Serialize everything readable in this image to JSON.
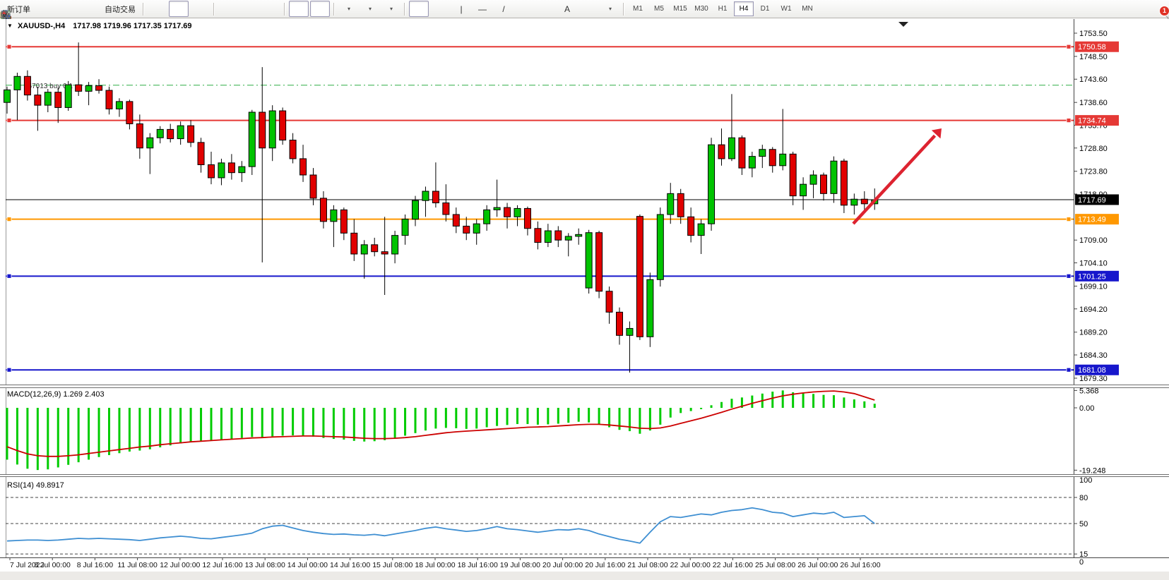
{
  "toolbar": {
    "groups": [
      {
        "name": "trade",
        "items": [
          {
            "name": "new-order-button",
            "kind": "text",
            "label": "新订单",
            "interact": true
          },
          {
            "name": "gold-bar-icon",
            "kind": "icon",
            "icon": "gold"
          },
          {
            "name": "market-watch-icon",
            "kind": "icon",
            "icon": "monitor"
          },
          {
            "name": "signals-icon",
            "kind": "icon",
            "icon": "signal"
          },
          {
            "name": "autotrade-button",
            "kind": "icontext",
            "icon": "autotrade",
            "label": "自动交易"
          }
        ]
      },
      {
        "name": "chart-type",
        "items": [
          {
            "name": "bar-chart-button",
            "kind": "icon",
            "icon": "bars"
          },
          {
            "name": "candlestick-chart-button",
            "kind": "icon",
            "icon": "candles",
            "active": true
          },
          {
            "name": "line-chart-button",
            "kind": "icon",
            "icon": "linechart"
          }
        ]
      },
      {
        "name": "zoom",
        "items": [
          {
            "name": "zoom-in-button",
            "kind": "icon",
            "icon": "zoomin"
          },
          {
            "name": "zoom-out-button",
            "kind": "icon",
            "icon": "zoomout"
          },
          {
            "name": "tile-windows-button",
            "kind": "icon",
            "icon": "tile"
          }
        ]
      },
      {
        "name": "scroll",
        "items": [
          {
            "name": "auto-scroll-button",
            "kind": "icon",
            "icon": "autoscroll",
            "active": true
          },
          {
            "name": "chart-shift-button",
            "kind": "icon",
            "icon": "chartshift",
            "active": true
          }
        ]
      },
      {
        "name": "insert",
        "items": [
          {
            "name": "indicators-button",
            "kind": "icon",
            "icon": "indicator",
            "caret": true
          },
          {
            "name": "periods-button",
            "kind": "icon",
            "icon": "clock",
            "caret": true
          },
          {
            "name": "templates-button",
            "kind": "icon",
            "icon": "template",
            "caret": true
          }
        ]
      },
      {
        "name": "draw",
        "items": [
          {
            "name": "cursor-button",
            "kind": "icon",
            "icon": "cursor",
            "active": true
          },
          {
            "name": "crosshair-button",
            "kind": "icon",
            "icon": "crosshair"
          },
          {
            "name": "vertical-line-button",
            "kind": "glyph",
            "glyph": "|"
          },
          {
            "name": "horizontal-line-button",
            "kind": "glyph",
            "glyph": "—"
          },
          {
            "name": "trendline-button",
            "kind": "glyph",
            "glyph": "/"
          },
          {
            "name": "channel-button",
            "kind": "icon",
            "icon": "channel"
          },
          {
            "name": "fibonacci-button",
            "kind": "icon",
            "icon": "fibo"
          },
          {
            "name": "text-button",
            "kind": "glyph",
            "glyph": "A"
          },
          {
            "name": "text-label-button",
            "kind": "icon",
            "icon": "textlabel"
          },
          {
            "name": "arrows-button",
            "kind": "icon",
            "icon": "shapes",
            "caret": true
          }
        ]
      }
    ],
    "timeframes": {
      "items": [
        "M1",
        "M5",
        "M15",
        "M30",
        "H1",
        "H4",
        "D1",
        "W1",
        "MN"
      ],
      "active": "H4"
    },
    "right": {
      "search_icon": "search",
      "chat_icon": "chat",
      "badge": "1"
    }
  },
  "header": {
    "collapse_glyph": "▼",
    "title": "XAUUSD-,H4",
    "ohlc": "1717.98 1719.96 1717.35 1717.69"
  },
  "chart_data": {
    "type": "candlestick",
    "symbol": "XAUUSD",
    "timeframe": "H4",
    "title": "XAUUSD-,H4",
    "current_ohlc": {
      "open": 1717.98,
      "high": 1719.96,
      "low": 1717.35,
      "close": 1717.69
    },
    "x_labels": [
      "7 Jul 2022",
      "8 Jul 00:00",
      "8 Jul 16:00",
      "11 Jul 08:00",
      "12 Jul 00:00",
      "12 Jul 16:00",
      "13 Jul 08:00",
      "14 Jul 00:00",
      "14 Jul 16:00",
      "15 Jul 08:00",
      "18 Jul 00:00",
      "18 Jul 16:00",
      "19 Jul 08:00",
      "20 Jul 00:00",
      "20 Jul 16:00",
      "21 Jul 08:00",
      "22 Jul 00:00",
      "22 Jul 16:00",
      "25 Jul 08:00",
      "26 Jul 00:00",
      "26 Jul 16:00"
    ],
    "price_ticks": [
      1753.5,
      1748.5,
      1743.6,
      1738.6,
      1733.7,
      1728.8,
      1723.8,
      1718.9,
      1709.0,
      1704.1,
      1699.1,
      1694.2,
      1689.2,
      1684.3,
      1679.3
    ],
    "candles": [
      [
        1738.6,
        1742.0,
        1736.2,
        1741.3
      ],
      [
        1741.3,
        1745.0,
        1734.8,
        1744.2
      ],
      [
        1744.2,
        1745.5,
        1739.0,
        1740.2
      ],
      [
        1740.2,
        1742.0,
        1732.5,
        1738.0
      ],
      [
        1738.0,
        1741.5,
        1736.5,
        1740.8
      ],
      [
        1740.8,
        1741.8,
        1734.2,
        1737.5
      ],
      [
        1737.5,
        1743.2,
        1736.8,
        1742.4
      ],
      [
        1742.4,
        1751.5,
        1740.0,
        1741.0
      ],
      [
        1741.0,
        1743.0,
        1738.0,
        1742.2
      ],
      [
        1742.2,
        1743.6,
        1740.5,
        1741.2
      ],
      [
        1741.2,
        1742.0,
        1736.0,
        1737.2
      ],
      [
        1737.2,
        1739.5,
        1735.5,
        1738.8
      ],
      [
        1738.8,
        1739.2,
        1732.8,
        1734.0
      ],
      [
        1734.0,
        1736.0,
        1726.5,
        1728.8
      ],
      [
        1728.8,
        1732.0,
        1723.2,
        1731.0
      ],
      [
        1731.0,
        1733.5,
        1729.8,
        1732.8
      ],
      [
        1732.8,
        1734.0,
        1730.0,
        1730.8
      ],
      [
        1730.8,
        1734.5,
        1729.5,
        1733.6
      ],
      [
        1733.6,
        1734.8,
        1729.0,
        1730.0
      ],
      [
        1730.0,
        1731.0,
        1723.5,
        1725.2
      ],
      [
        1725.2,
        1728.0,
        1721.0,
        1722.4
      ],
      [
        1722.4,
        1726.5,
        1720.8,
        1725.6
      ],
      [
        1725.6,
        1727.5,
        1722.0,
        1723.5
      ],
      [
        1723.5,
        1726.0,
        1721.5,
        1724.8
      ],
      [
        1724.8,
        1737.0,
        1723.0,
        1736.5
      ],
      [
        1736.5,
        1746.2,
        1704.2,
        1728.8
      ],
      [
        1728.8,
        1738.0,
        1726.0,
        1736.8
      ],
      [
        1736.8,
        1737.5,
        1729.5,
        1730.5
      ],
      [
        1730.5,
        1732.0,
        1725.5,
        1726.5
      ],
      [
        1726.5,
        1729.5,
        1721.5,
        1723.0
      ],
      [
        1723.0,
        1724.5,
        1716.5,
        1718.0
      ],
      [
        1718.0,
        1719.5,
        1711.5,
        1713.0
      ],
      [
        1713.0,
        1716.5,
        1707.5,
        1715.5
      ],
      [
        1715.5,
        1716.0,
        1709.0,
        1710.5
      ],
      [
        1710.5,
        1713.5,
        1704.5,
        1706.0
      ],
      [
        1706.0,
        1709.0,
        1700.7,
        1708.0
      ],
      [
        1708.0,
        1709.5,
        1705.5,
        1706.5
      ],
      [
        1706.5,
        1714.0,
        1697.2,
        1706.0
      ],
      [
        1706.0,
        1711.0,
        1704.0,
        1710.0
      ],
      [
        1710.0,
        1714.5,
        1708.0,
        1713.5
      ],
      [
        1713.5,
        1718.5,
        1712.0,
        1717.5
      ],
      [
        1717.5,
        1720.5,
        1714.0,
        1719.5
      ],
      [
        1719.5,
        1725.7,
        1716.0,
        1717.0
      ],
      [
        1717.0,
        1721.0,
        1713.0,
        1714.5
      ],
      [
        1714.5,
        1716.0,
        1710.5,
        1712.0
      ],
      [
        1712.0,
        1714.0,
        1709.0,
        1710.5
      ],
      [
        1710.5,
        1713.5,
        1708.0,
        1712.5
      ],
      [
        1712.5,
        1716.5,
        1711.0,
        1715.5
      ],
      [
        1715.5,
        1722.0,
        1714.0,
        1716.0
      ],
      [
        1716.0,
        1717.0,
        1711.5,
        1714.0
      ],
      [
        1714.0,
        1716.5,
        1712.0,
        1715.8
      ],
      [
        1715.8,
        1716.2,
        1710.0,
        1711.5
      ],
      [
        1711.5,
        1713.0,
        1707.0,
        1708.5
      ],
      [
        1708.5,
        1712.5,
        1707.5,
        1711.0
      ],
      [
        1711.0,
        1712.0,
        1707.5,
        1709.0
      ],
      [
        1709.0,
        1710.5,
        1705.5,
        1709.8
      ],
      [
        1709.8,
        1711.5,
        1708.0,
        1710.2
      ],
      [
        1698.7,
        1711.2,
        1697.5,
        1710.6
      ],
      [
        1710.6,
        1711.0,
        1696.5,
        1698.0
      ],
      [
        1698.0,
        1699.0,
        1691.0,
        1693.5
      ],
      [
        1693.5,
        1694.5,
        1686.5,
        1688.5
      ],
      [
        1688.5,
        1691.5,
        1680.5,
        1690.0
      ],
      [
        1714.1,
        1714.5,
        1687.5,
        1688.2
      ],
      [
        1688.2,
        1702.0,
        1686.0,
        1700.5
      ],
      [
        1700.5,
        1716.0,
        1699.0,
        1714.5
      ],
      [
        1714.5,
        1721.3,
        1712.5,
        1719.0
      ],
      [
        1719.0,
        1720.0,
        1712.5,
        1714.0
      ],
      [
        1714.0,
        1716.0,
        1708.5,
        1710.0
      ],
      [
        1710.0,
        1713.5,
        1706.0,
        1712.5
      ],
      [
        1712.5,
        1731.0,
        1711.0,
        1729.5
      ],
      [
        1729.5,
        1733.0,
        1725.0,
        1726.5
      ],
      [
        1726.5,
        1740.4,
        1726.0,
        1731.0
      ],
      [
        1731.0,
        1731.5,
        1723.0,
        1724.5
      ],
      [
        1724.5,
        1728.0,
        1722.5,
        1727.0
      ],
      [
        1727.0,
        1729.5,
        1724.5,
        1728.5
      ],
      [
        1728.5,
        1729.0,
        1723.5,
        1725.0
      ],
      [
        1725.0,
        1737.2,
        1724.0,
        1727.5
      ],
      [
        1727.5,
        1728.0,
        1716.5,
        1718.5
      ],
      [
        1718.5,
        1722.5,
        1715.5,
        1721.0
      ],
      [
        1721.0,
        1724.0,
        1718.0,
        1723.0
      ],
      [
        1723.0,
        1723.5,
        1717.5,
        1719.0
      ],
      [
        1719.0,
        1727.0,
        1717.0,
        1726.0
      ],
      [
        1726.0,
        1726.5,
        1714.8,
        1716.5
      ],
      [
        1716.5,
        1719.0,
        1714.5,
        1717.8
      ],
      [
        1717.8,
        1719.5,
        1715.5,
        1716.8
      ],
      [
        1716.8,
        1720.1,
        1715.5,
        1717.69
      ]
    ],
    "price_lines": [
      {
        "price": 1750.58,
        "label": "1750.58",
        "color": "#e53935",
        "style": "solid",
        "width": 2,
        "tag": true,
        "handles": true
      },
      {
        "price": 1734.74,
        "label": "1734.74",
        "color": "#e53935",
        "style": "solid",
        "width": 2,
        "tag": true,
        "handles": true
      },
      {
        "price": 1742.3,
        "label": "#67013 buy 0.1",
        "color": "#2eae45",
        "style": "dashdot",
        "width": 1,
        "tag": false,
        "handles": false,
        "order": true
      },
      {
        "price": 1717.69,
        "label": "1717.69",
        "color": "#000000",
        "style": "solid",
        "width": 1,
        "tag": true,
        "tagbg": "#000000",
        "handles": false
      },
      {
        "price": 1713.49,
        "label": "1713.49",
        "color": "#ff9800",
        "style": "solid",
        "width": 2,
        "tag": true,
        "handles": true
      },
      {
        "price": 1701.25,
        "label": "1701.25",
        "color": "#1717cc",
        "style": "solid",
        "width": 2,
        "tag": true,
        "handles": true
      },
      {
        "price": 1681.08,
        "label": "1681.08",
        "color": "#1717cc",
        "style": "solid",
        "width": 2,
        "tag": true,
        "handles": true
      }
    ],
    "annotations": [
      {
        "type": "trend-arrow-up",
        "from_xy": [
          1208,
          290
        ],
        "to_xy": [
          1333,
          155
        ],
        "color": "#dd2330"
      }
    ],
    "indicators": [
      {
        "name": "MACD",
        "label": "MACD(12,26,9) 1.269 2.403",
        "params": "12,26,9",
        "current": [
          1.269,
          2.403
        ],
        "axis_ticks": [
          "5.368",
          "0.00",
          "-19.248"
        ],
        "axis_values": [
          5.368,
          0.0,
          -19.248
        ],
        "histogram": [
          -16.0,
          -17.5,
          -18.8,
          -19.2,
          -19.0,
          -18.4,
          -17.6,
          -16.8,
          -16.0,
          -15.2,
          -14.6,
          -14.0,
          -13.5,
          -13.2,
          -12.8,
          -12.2,
          -11.6,
          -11.0,
          -10.6,
          -10.4,
          -10.2,
          -9.9,
          -9.6,
          -9.3,
          -9.0,
          -9.2,
          -8.8,
          -8.6,
          -8.5,
          -8.6,
          -8.9,
          -9.3,
          -9.6,
          -9.8,
          -10.2,
          -10.4,
          -10.3,
          -10.0,
          -9.4,
          -8.6,
          -7.8,
          -7.0,
          -6.4,
          -6.2,
          -6.3,
          -6.5,
          -6.4,
          -6.0,
          -5.6,
          -5.3,
          -5.0,
          -5.0,
          -5.2,
          -5.1,
          -4.9,
          -4.6,
          -4.3,
          -4.5,
          -5.2,
          -6.0,
          -6.8,
          -7.2,
          -8.0,
          -7.0,
          -5.2,
          -3.0,
          -1.6,
          -1.0,
          -0.4,
          0.8,
          1.8,
          2.8,
          3.2,
          3.8,
          4.4,
          5.0,
          5.37,
          4.8,
          4.5,
          4.3,
          4.0,
          3.9,
          3.2,
          2.6,
          2.0,
          1.269
        ],
        "signal": [
          -12.0,
          -13.2,
          -14.2,
          -14.8,
          -15.0,
          -15.0,
          -14.8,
          -14.5,
          -14.1,
          -13.7,
          -13.3,
          -12.9,
          -12.5,
          -12.1,
          -11.8,
          -11.4,
          -11.1,
          -10.8,
          -10.5,
          -10.3,
          -10.1,
          -9.9,
          -9.7,
          -9.5,
          -9.3,
          -9.2,
          -9.0,
          -8.9,
          -8.8,
          -8.7,
          -8.7,
          -8.8,
          -8.9,
          -9.0,
          -9.2,
          -9.4,
          -9.5,
          -9.5,
          -9.4,
          -9.2,
          -8.9,
          -8.5,
          -8.1,
          -7.7,
          -7.4,
          -7.2,
          -7.0,
          -6.8,
          -6.6,
          -6.4,
          -6.2,
          -6.0,
          -5.9,
          -5.8,
          -5.6,
          -5.4,
          -5.2,
          -5.1,
          -5.1,
          -5.3,
          -5.6,
          -5.9,
          -6.3,
          -6.4,
          -6.2,
          -5.6,
          -4.8,
          -4.0,
          -3.2,
          -2.3,
          -1.4,
          -0.4,
          0.5,
          1.4,
          2.2,
          3.0,
          3.7,
          4.2,
          4.6,
          4.9,
          5.1,
          5.2,
          4.9,
          4.4,
          3.4,
          2.403
        ]
      },
      {
        "name": "RSI",
        "label": "RSI(14) 49.8917",
        "params": "14",
        "current": 49.8917,
        "axis_ticks": [
          "100",
          "80",
          "50",
          "15",
          "0"
        ],
        "dashed_levels": [
          80,
          50,
          15
        ],
        "values": [
          30,
          30.5,
          31,
          31,
          30.5,
          31,
          32,
          33,
          32.5,
          33,
          32.5,
          32,
          31.5,
          30.5,
          32,
          33.5,
          34.5,
          35.5,
          34.5,
          33,
          32.5,
          34,
          35.5,
          37,
          39,
          44,
          47,
          48,
          45,
          42,
          40,
          38.5,
          37.5,
          38,
          37,
          36.5,
          37.5,
          36,
          38,
          40,
          42,
          44.5,
          46,
          44,
          42.5,
          41,
          42,
          44,
          46.5,
          44,
          43,
          41.5,
          40,
          41.5,
          43,
          42.5,
          44,
          42,
          38,
          35,
          32,
          30,
          27.5,
          40,
          52,
          58,
          57,
          59,
          61,
          60,
          63,
          65,
          66,
          68,
          66,
          63,
          62,
          58,
          60,
          62,
          61,
          63,
          57,
          58,
          59,
          49.89
        ]
      }
    ],
    "colors": {
      "bull": "#00c300",
      "bear": "#e10000",
      "outline": "#000000",
      "macd_hist": "#00cc00",
      "macd_signal": "#cc0000",
      "rsi_line": "#3f8fd2"
    }
  }
}
